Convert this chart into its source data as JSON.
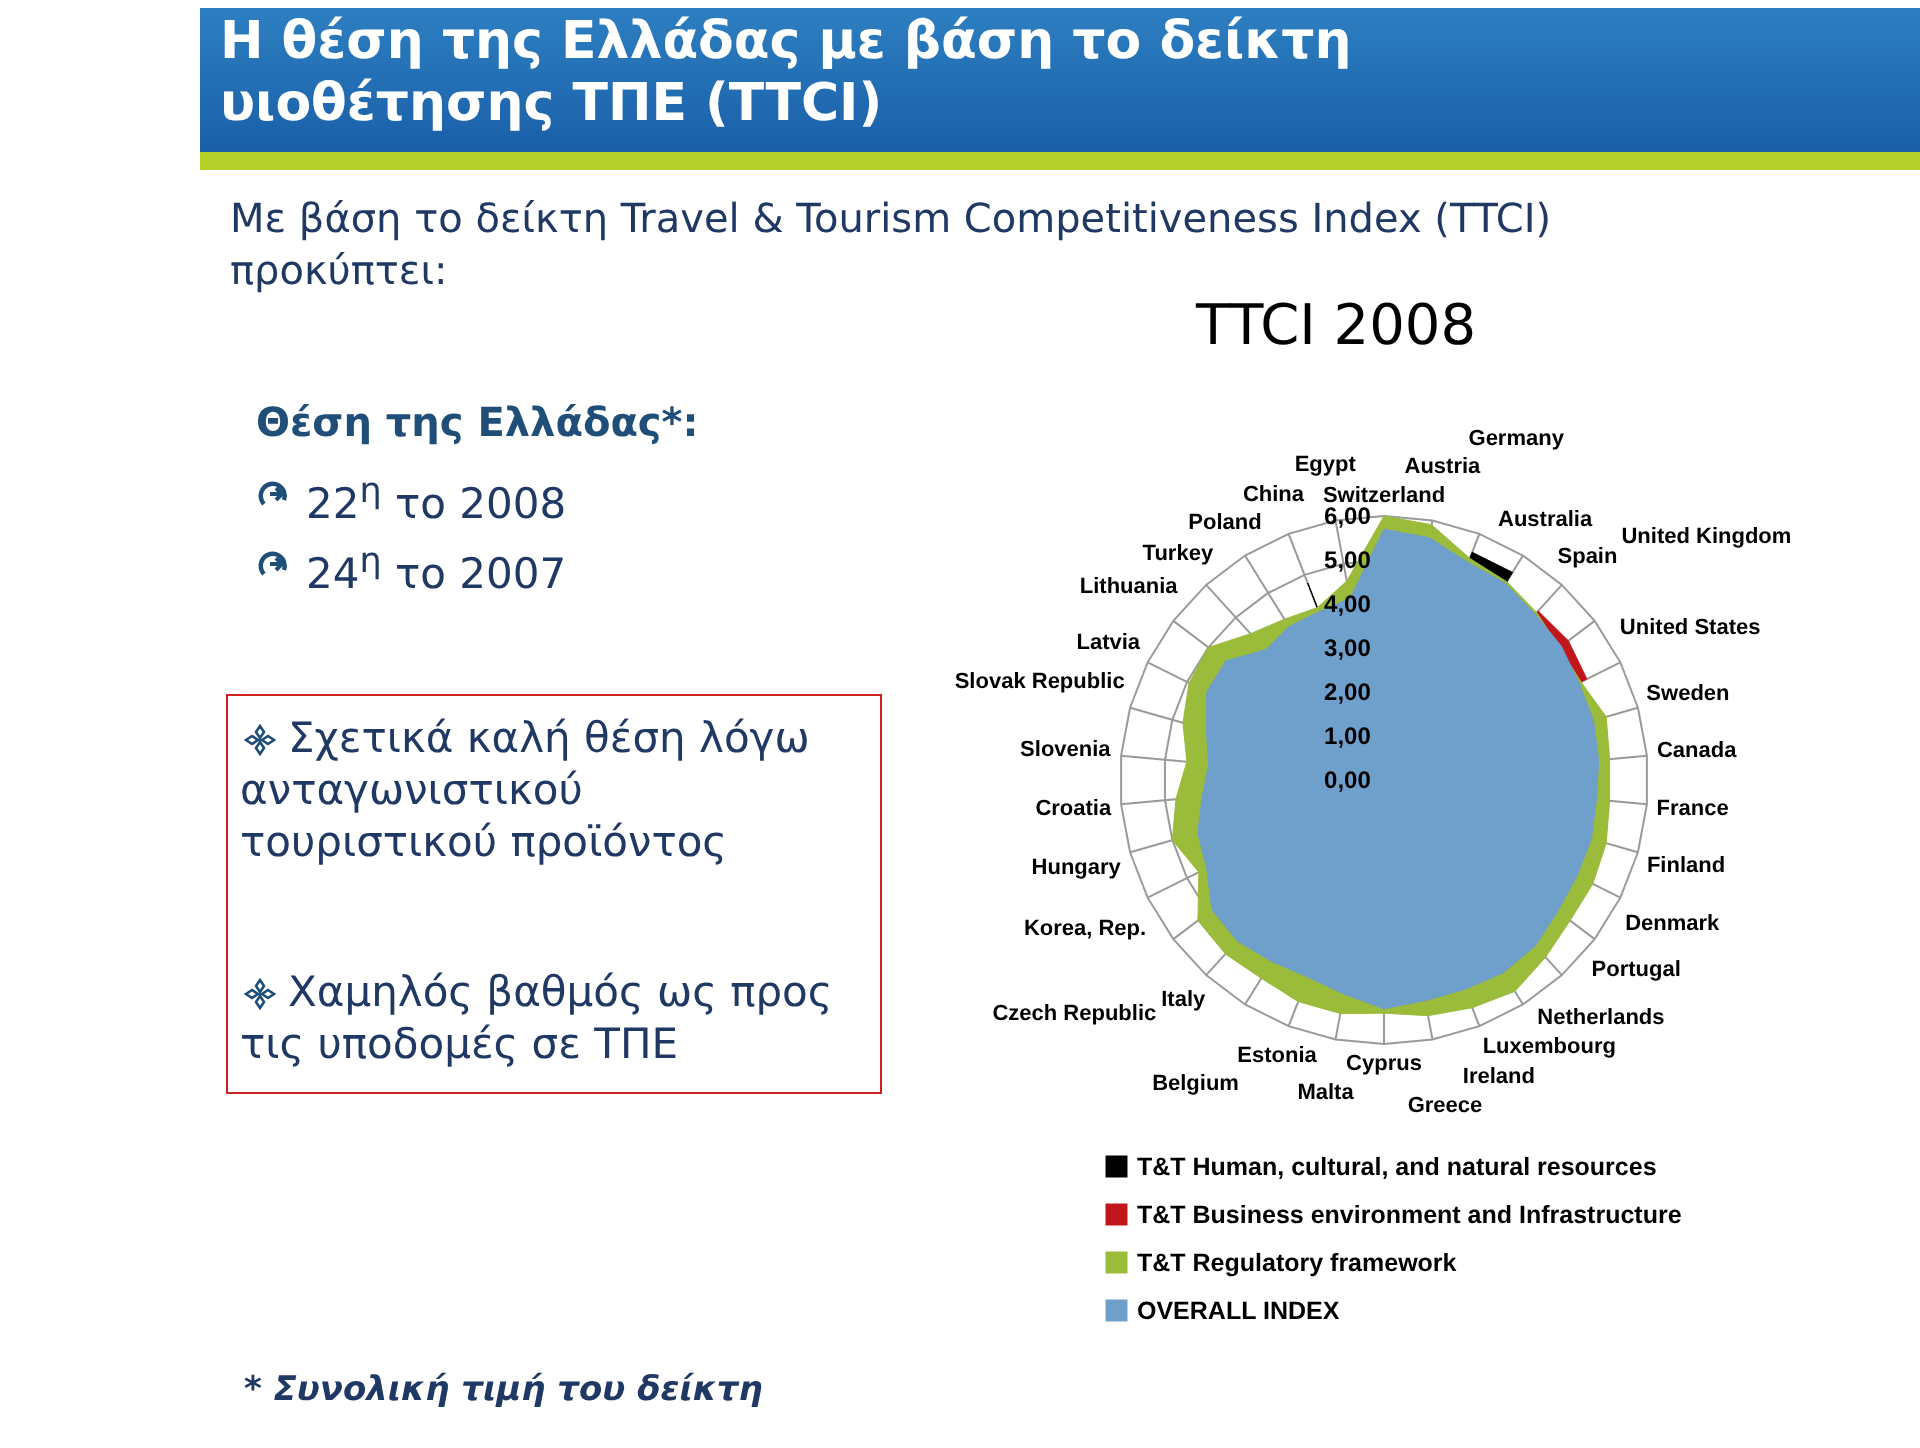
{
  "chart_data": {
    "type": "radar",
    "title": "Η θέση της Ελλάδας με βάση το δείκτη υιοθέτησης ΤΠΕ (TTCI)",
    "subtitle": "Με βάση το δείκτη Travel & Tourism Competitiveness Index (TTCI) προκύπτει:",
    "annotations": [
      "TTCI 2008",
      "Θέση της Ελλάδας*:",
      "22$^{η}$ το 2008",
      "24$^{η}$ το 2007",
      "Σχετικά καλή θέση λόγω ανταγωνιστικού τουριστικού προϊόντος",
      "Χαμηλός βαθμός ως προς τις υποδομές σε ΤΠΕ",
      "* Συνολική τιμή του δείκτη"
    ],
    "categories": [
      "Switzerland",
      "Austria",
      "Germany",
      "Australia",
      "Spain",
      "United Kingdom",
      "United States",
      "Sweden",
      "Canada",
      "France",
      "Finland",
      "Denmark",
      "Portugal",
      "Netherlands",
      "Luxembourg",
      "Ireland",
      "Greece",
      "Cyprus",
      "Malta",
      "Estonia",
      "Belgium",
      "Italy",
      "Czech Republic",
      "Korea, Rep.",
      "Hungary",
      "Croatia",
      "Slovenia",
      "Slovak Republic",
      "Latvia",
      "Lithuania",
      "Turkey",
      "Poland",
      "China",
      "Egypt"
    ],
    "series": [
      {
        "name": "T&T Human, cultural, and natural resources",
        "color": "#000000",
        "values": [
          null,
          null,
          5.55,
          5.55,
          null,
          null,
          null,
          null,
          null,
          null,
          null,
          null,
          null,
          null,
          null,
          null,
          null,
          null,
          null,
          null,
          null,
          null,
          null,
          null,
          null,
          null,
          null,
          null,
          null,
          null,
          null,
          null,
          4.8,
          null
        ]
      },
      {
        "name": "T&T Business environment and Infrastructure",
        "color": "#c0161c",
        "values": [
          null,
          null,
          null,
          null,
          5.2,
          5.25,
          5.15,
          null,
          5.0,
          null,
          null,
          null,
          null,
          null,
          null,
          null,
          null,
          null,
          null,
          null,
          null,
          null,
          null,
          null,
          null,
          null,
          null,
          null,
          null,
          null,
          null,
          null,
          null,
          null
        ]
      },
      {
        "name": "T&T Regulatory framework",
        "color": "#9bbb3b",
        "values": [
          6.0,
          5.9,
          5.4,
          5.3,
          5.15,
          5.0,
          5.0,
          5.25,
          5.15,
          5.15,
          5.25,
          5.3,
          5.3,
          5.45,
          5.65,
          5.55,
          5.45,
          5.3,
          5.4,
          5.4,
          5.3,
          5.35,
          5.3,
          4.7,
          5.0,
          4.75,
          4.5,
          4.75,
          4.95,
          5.0,
          4.5,
          4.3,
          4.2,
          4.6
        ]
      },
      {
        "name": "OVERALL INDEX",
        "color": "#6f9fcb",
        "values": [
          5.7,
          5.6,
          5.3,
          5.25,
          5.1,
          5.05,
          4.95,
          4.95,
          4.9,
          4.85,
          4.9,
          4.9,
          4.95,
          5.1,
          5.15,
          5.1,
          5.1,
          5.2,
          4.95,
          4.8,
          4.85,
          4.95,
          4.9,
          4.5,
          4.4,
          4.15,
          4.0,
          4.2,
          4.5,
          4.5,
          4.0,
          4.1,
          4.1,
          4.2
        ]
      }
    ],
    "ylim": [
      0,
      6
    ],
    "yticks": [
      {
        "value": 0,
        "label": "0,00"
      },
      {
        "value": 1,
        "label": "1,00"
      },
      {
        "value": 2,
        "label": "2,00"
      },
      {
        "value": 3,
        "label": "3,00"
      },
      {
        "value": 4,
        "label": "4,00"
      },
      {
        "value": 5,
        "label": "5,00"
      },
      {
        "value": 6,
        "label": "6,00"
      }
    ],
    "grid": true,
    "legend": "bottom"
  }
}
